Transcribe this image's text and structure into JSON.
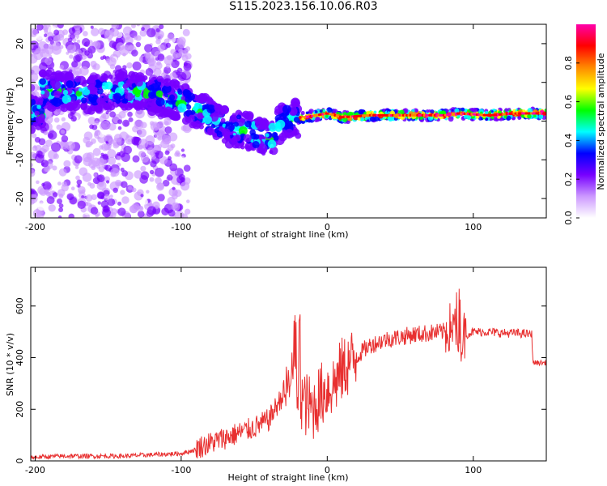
{
  "title": "S115.2023.156.10.06.R03",
  "chart_data": [
    {
      "type": "heatmap",
      "xlabel": "Height of straight line (km)",
      "ylabel": "Frequency (Hz)",
      "xlim": [
        -203,
        150
      ],
      "ylim": [
        -25,
        25
      ],
      "xticks": [
        -200,
        -100,
        0,
        100
      ],
      "yticks": [
        -20,
        -10,
        0,
        10,
        20
      ],
      "colorbar": {
        "label": "Normalized spectral amplitude",
        "range": [
          0,
          1
        ],
        "ticks": [
          "0.0",
          "0.2",
          "0.4",
          "0.6",
          "0.8"
        ],
        "colors": [
          "#ffffff",
          "#cc99ff",
          "#7700ff",
          "#0000ff",
          "#00ffff",
          "#00ff00",
          "#ffff00",
          "#ff8800",
          "#ff0000",
          "#ff00aa"
        ]
      },
      "ridge": [
        {
          "x": -195,
          "y": 8
        },
        {
          "x": -160,
          "y": 7
        },
        {
          "x": -140,
          "y": 8
        },
        {
          "x": -120,
          "y": 7
        },
        {
          "x": -100,
          "y": 5
        },
        {
          "x": -80,
          "y": 1
        },
        {
          "x": -65,
          "y": -2
        },
        {
          "x": -50,
          "y": -3
        },
        {
          "x": -40,
          "y": -5
        },
        {
          "x": -30,
          "y": 0
        },
        {
          "x": -15,
          "y": 1
        },
        {
          "x": 0,
          "y": 2
        },
        {
          "x": 10,
          "y": 1
        },
        {
          "x": 30,
          "y": 1.5
        },
        {
          "x": 60,
          "y": 1.5
        },
        {
          "x": 80,
          "y": 1.5
        },
        {
          "x": 90,
          "y": 2
        },
        {
          "x": 110,
          "y": 1.5
        },
        {
          "x": 130,
          "y": 2
        },
        {
          "x": 150,
          "y": 2
        }
      ]
    },
    {
      "type": "line",
      "xlabel": "Height of straight line (km)",
      "ylabel": "SNR (10 * v/v)",
      "xlim": [
        -203,
        150
      ],
      "ylim": [
        0,
        750
      ],
      "xticks": [
        -200,
        -100,
        0,
        100
      ],
      "yticks": [
        0,
        200,
        400,
        600
      ],
      "color": "#e83030",
      "series": [
        {
          "x": [
            -203,
            -180,
            -160,
            -140,
            -120,
            -100,
            -90,
            -80,
            -70,
            -60,
            -50,
            -40,
            -35,
            -30,
            -25,
            -20,
            -15,
            -10,
            -5,
            0,
            5,
            10,
            15,
            20,
            25,
            30,
            40,
            50,
            60,
            70,
            80,
            85,
            90,
            95,
            100,
            110,
            120,
            130,
            140,
            141,
            150
          ],
          "y": [
            10,
            15,
            15,
            15,
            20,
            25,
            40,
            60,
            80,
            100,
            120,
            150,
            200,
            250,
            300,
            280,
            220,
            200,
            250,
            280,
            300,
            350,
            380,
            400,
            430,
            450,
            470,
            480,
            490,
            495,
            500,
            520,
            480,
            490,
            500,
            500,
            495,
            495,
            490,
            380,
            380
          ]
        }
      ]
    }
  ]
}
